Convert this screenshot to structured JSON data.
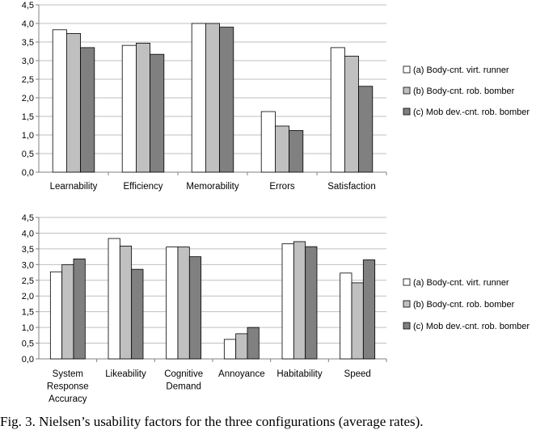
{
  "caption": "Fig. 3. Nielsen’s usability factors for the three configurations (average rates).",
  "colors": {
    "series_a": "#ffffff",
    "series_b": "#c0c0c0",
    "series_c": "#808080",
    "border": "#000000",
    "grid": "#bfbfbf"
  },
  "chart_data": [
    {
      "type": "bar",
      "title": "",
      "xlabel": "",
      "ylabel": "",
      "ylim": [
        0,
        4.5
      ],
      "yticks": [
        "0,0",
        "0,5",
        "1,0",
        "1,5",
        "2,0",
        "2,5",
        "3,0",
        "3,5",
        "4,0",
        "4,5"
      ],
      "grid": true,
      "legend_position": "right",
      "categories": [
        [
          "Learnability"
        ],
        [
          "Efficiency"
        ],
        [
          "Memorability"
        ],
        [
          "Errors"
        ],
        [
          "Satisfaction"
        ]
      ],
      "series": [
        {
          "name": "(a) Body-cnt. virt. runner",
          "values": [
            3.83,
            3.41,
            4.0,
            1.63,
            3.35
          ]
        },
        {
          "name": "(b) Body-cnt. rob. bomber",
          "values": [
            3.73,
            3.47,
            4.0,
            1.24,
            3.12
          ]
        },
        {
          "name": "(c) Mob dev.-cnt. rob. bomber",
          "values": [
            3.35,
            3.17,
            3.9,
            1.12,
            2.31
          ]
        }
      ]
    },
    {
      "type": "bar",
      "title": "",
      "xlabel": "",
      "ylabel": "",
      "ylim": [
        0,
        4.5
      ],
      "yticks": [
        "0,0",
        "0,5",
        "1,0",
        "1,5",
        "2,0",
        "2,5",
        "3,0",
        "3,5",
        "4,0",
        "4,5"
      ],
      "grid": true,
      "legend_position": "right",
      "categories": [
        [
          "System",
          "Response",
          "Accuracy"
        ],
        [
          "Likeability"
        ],
        [
          "Cognitive",
          "Demand"
        ],
        [
          "Annoyance"
        ],
        [
          "Habitability"
        ],
        [
          "Speed"
        ]
      ],
      "series": [
        {
          "name": "(a) Body-cnt. virt. runner",
          "values": [
            2.77,
            3.83,
            3.56,
            0.62,
            3.66,
            2.73
          ]
        },
        {
          "name": "(b) Body-cnt. rob. bomber",
          "values": [
            3.0,
            3.59,
            3.56,
            0.8,
            3.73,
            2.42
          ]
        },
        {
          "name": "(c) Mob dev.-cnt. rob. bomber",
          "values": [
            3.18,
            2.85,
            3.25,
            1.0,
            3.57,
            3.15
          ]
        }
      ]
    }
  ]
}
